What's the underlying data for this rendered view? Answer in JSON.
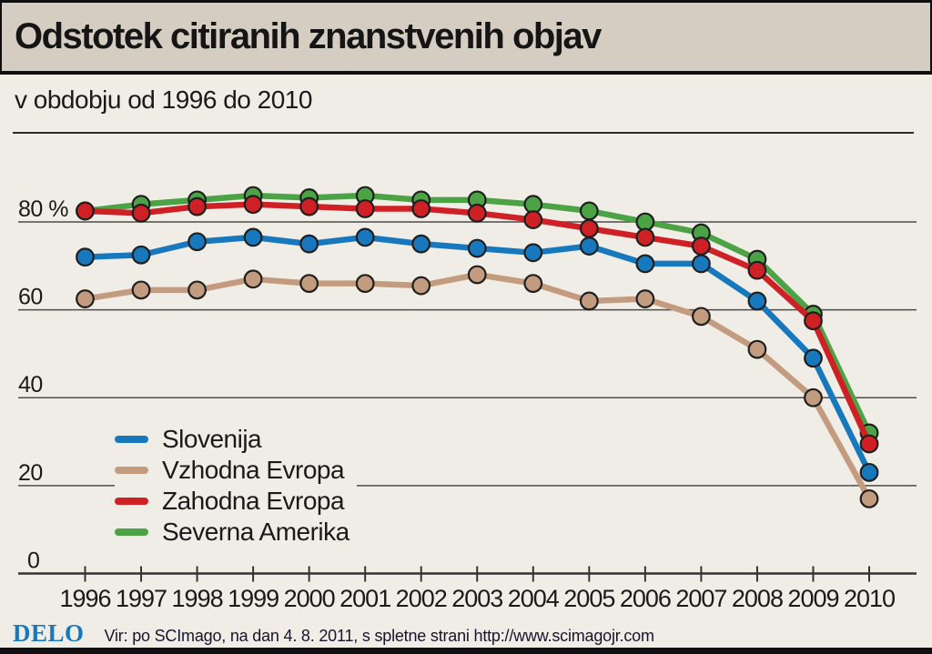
{
  "page": {
    "title": "Odstotek citiranih znanstvenih objav",
    "subtitle": "v obdobju od 1996 do 2010"
  },
  "chart_data": {
    "type": "line",
    "title": "Odstotek citiranih znanstvenih objav",
    "subtitle": "v obdobju od 1996 do 2010",
    "x": [
      1996,
      1997,
      1998,
      1999,
      2000,
      2001,
      2002,
      2003,
      2004,
      2005,
      2006,
      2007,
      2008,
      2009,
      2010
    ],
    "xlabel": "",
    "ylabel": "",
    "y_unit": "%",
    "ylim": [
      0,
      100
    ],
    "grid": true,
    "legend_position": "inside bottom-left",
    "yticks": [
      {
        "value": 80,
        "label": "80 %"
      },
      {
        "value": 60,
        "label": "60"
      },
      {
        "value": 40,
        "label": "40"
      },
      {
        "value": 20,
        "label": "20"
      },
      {
        "value": 0,
        "label": "0"
      }
    ],
    "series": [
      {
        "name": "Slovenija",
        "color": "#1878BE",
        "values": [
          72,
          72.5,
          75.5,
          76.5,
          75,
          76.5,
          75,
          74,
          73,
          74.5,
          70.5,
          70.5,
          62,
          49,
          23
        ]
      },
      {
        "name": "Vzhodna Evropa",
        "color": "#C39B7F",
        "values": [
          62.5,
          64.5,
          64.5,
          67,
          66,
          66,
          65.5,
          68,
          66,
          62,
          62.5,
          58.5,
          51,
          40,
          17
        ]
      },
      {
        "name": "Zahodna Evropa",
        "color": "#CF2026",
        "values": [
          82.5,
          82,
          83.5,
          84,
          83.5,
          83,
          83,
          82,
          80.5,
          78.5,
          76.5,
          74.5,
          69,
          57.5,
          29.5
        ]
      },
      {
        "name": "Severna Amerika",
        "color": "#4BA345",
        "values": [
          82.5,
          84,
          85,
          86,
          85.5,
          86,
          85,
          85,
          84,
          82.5,
          80,
          77.5,
          71.5,
          59,
          32
        ]
      }
    ]
  },
  "footer": {
    "brand": "DELO",
    "source": "Vir: po SCImago, na dan 4. 8. 2011, s spletne strani http://www.scimagojr.com"
  },
  "colors": {
    "background": "#F0EDE7",
    "header_band": "#D5CDC2",
    "text": "#1A1A1A",
    "grid": "#4D4D4D",
    "axis": "#333333",
    "dot_outline": "#1F1F1F",
    "brand_blue": "#1878BE"
  }
}
